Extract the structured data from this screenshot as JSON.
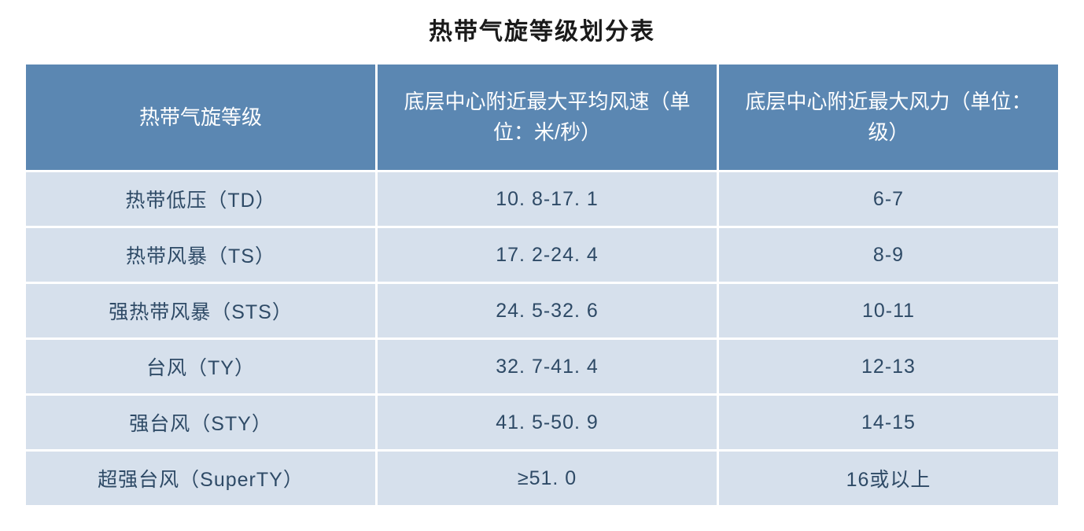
{
  "table": {
    "title": "热带气旋等级划分表",
    "title_fontsize": 30,
    "title_color": "#1a1a1a",
    "header_bg_color": "#5b87b2",
    "header_text_color": "#ffffff",
    "header_fontsize": 26,
    "row_bg_color": "#d6e0ec",
    "row_text_color": "#2e4a66",
    "row_fontsize": 25,
    "background_color": "#ffffff",
    "border_spacing": 3,
    "column_widths": [
      "34%",
      "33%",
      "33%"
    ],
    "columns": [
      "热带气旋等级",
      "底层中心附近最大平均风速（单位：米/秒）",
      "底层中心附近最大风力（单位：级）"
    ],
    "rows": [
      [
        "热带低压（TD）",
        "10. 8-17. 1",
        "6-7"
      ],
      [
        "热带风暴（TS）",
        "17. 2-24. 4",
        "8-9"
      ],
      [
        "强热带风暴（STS）",
        "24. 5-32. 6",
        "10-11"
      ],
      [
        "台风（TY）",
        "32. 7-41. 4",
        "12-13"
      ],
      [
        "强台风（STY）",
        "41. 5-50. 9",
        "14-15"
      ],
      [
        "超强台风（SuperTY）",
        "≥51. 0",
        "16或以上"
      ]
    ]
  }
}
